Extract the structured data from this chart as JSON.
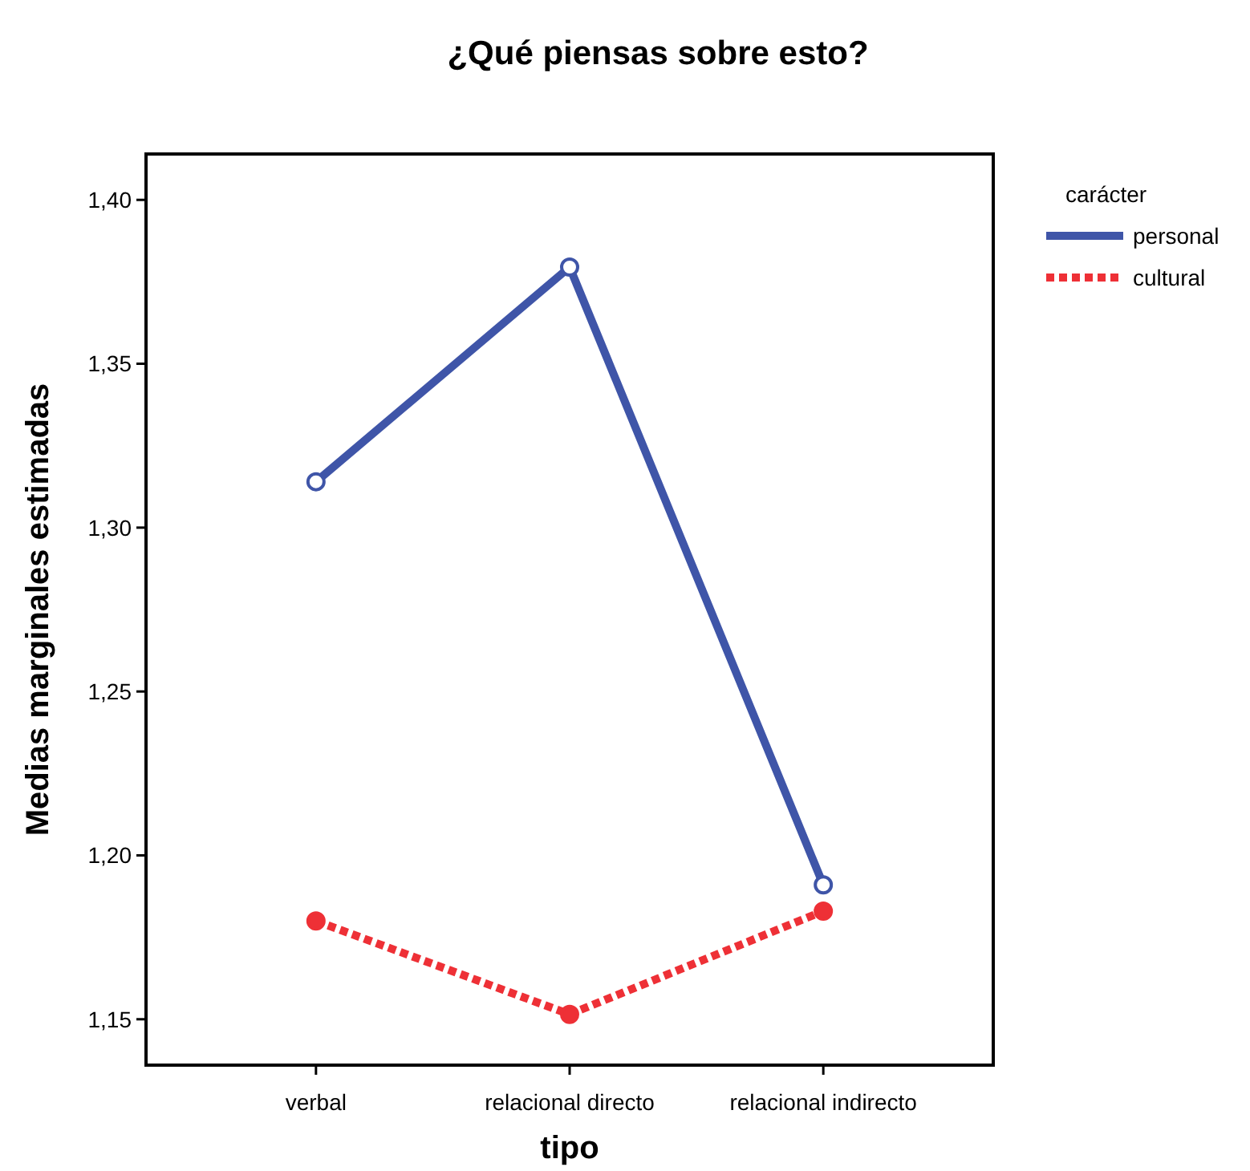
{
  "chart_data": {
    "type": "line",
    "title": "¿Qué piensas sobre esto?",
    "xlabel": "tipo",
    "ylabel": "Medias marginales estimadas",
    "legend_title": "carácter",
    "categories": [
      "verbal",
      "relacional directo",
      "relacional indirecto"
    ],
    "series": [
      {
        "name": "personal",
        "color": "#3f55a8",
        "values": [
          1.314,
          1.3795,
          1.191
        ],
        "line_style": "solid"
      },
      {
        "name": "cultural",
        "color": "#ee3036",
        "values": [
          1.18,
          1.1515,
          1.183
        ],
        "line_style": "dotted"
      }
    ],
    "ylim": [
      1.136,
      1.414
    ],
    "yticks": [
      {
        "value": 1.15,
        "label": "1,15"
      },
      {
        "value": 1.2,
        "label": "1,20"
      },
      {
        "value": 1.25,
        "label": "1,25"
      },
      {
        "value": 1.3,
        "label": "1,30"
      },
      {
        "value": 1.35,
        "label": "1,35"
      },
      {
        "value": 1.4,
        "label": "1,40"
      }
    ],
    "grid": false,
    "legend": "top right",
    "marker": "circle"
  }
}
